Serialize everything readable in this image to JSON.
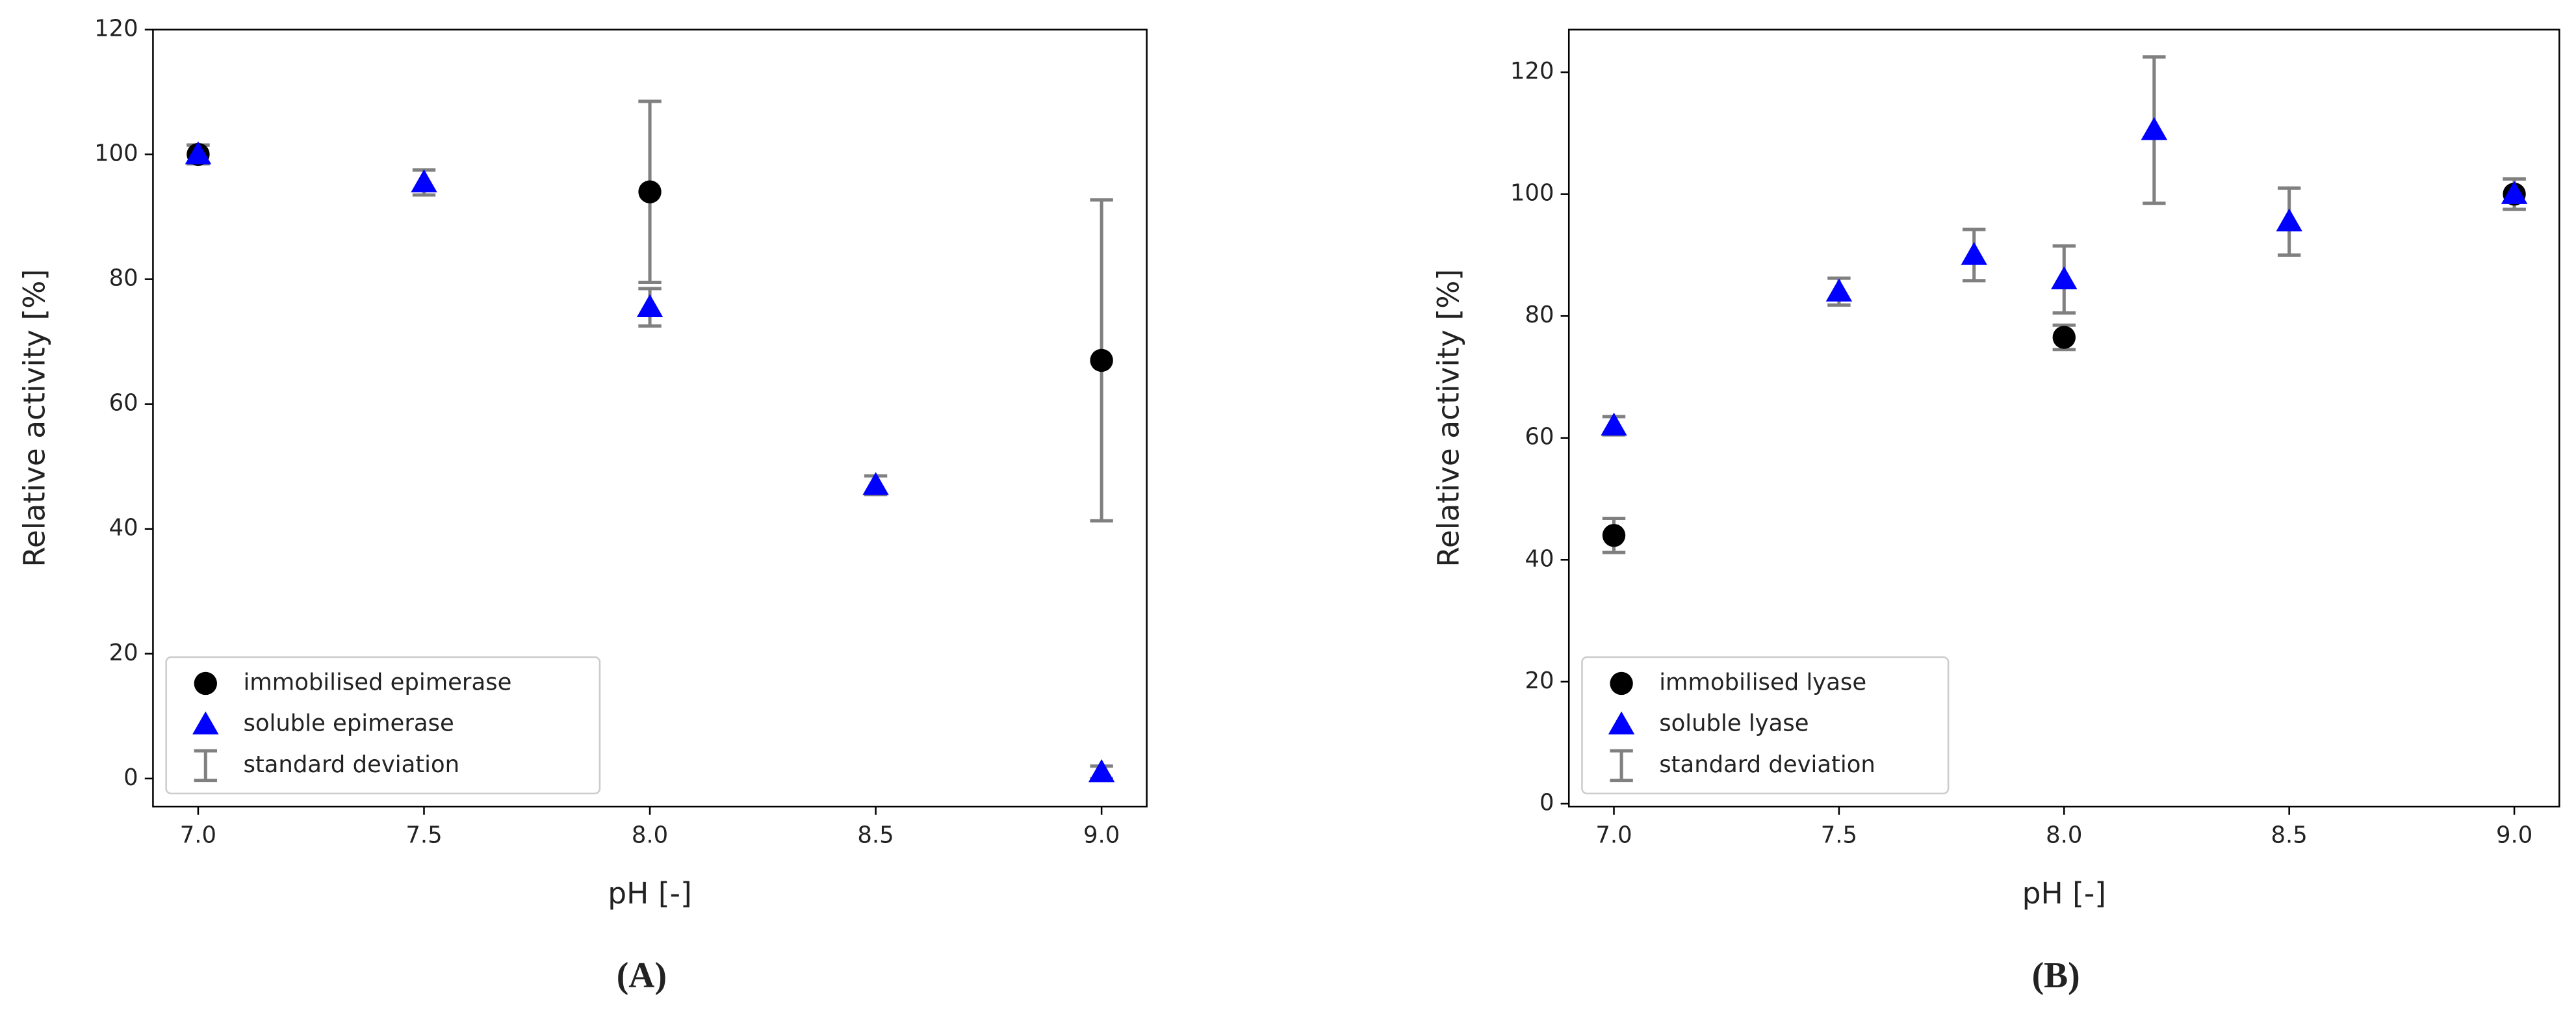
{
  "chart_data": [
    {
      "type": "scatter",
      "panel_label": "(A)",
      "xlabel": "pH [-]",
      "ylabel": "Relative activity [%]",
      "xlim": [
        6.9,
        9.1
      ],
      "ylim": [
        -4.5,
        120
      ],
      "xticks": [
        {
          "value": 7,
          "label": "7.0"
        },
        {
          "value": 7.5,
          "label": "7.5"
        },
        {
          "value": 8,
          "label": "8.0"
        },
        {
          "value": 8.5,
          "label": "8.5"
        },
        {
          "value": 9,
          "label": "9.0"
        }
      ],
      "yticks": [
        0,
        20,
        40,
        60,
        80,
        100,
        120
      ],
      "legend": "lower left",
      "errorbar_label": "standard deviation",
      "errorbar_color": "#808080",
      "series": [
        {
          "name": "immobilised epimerase",
          "color": "#000000",
          "marker": "circle",
          "x": [
            7,
            8,
            9
          ],
          "values": [
            100,
            94,
            67
          ],
          "errors": [
            1.5,
            14.5,
            25.7
          ]
        },
        {
          "name": "soluble epimerase",
          "color": "#0000ff",
          "marker": "triangle",
          "x": [
            7,
            7.5,
            8,
            8.5,
            9
          ],
          "values": [
            100,
            95.5,
            75.5,
            47,
            1
          ],
          "errors": [
            1.5,
            2,
            3,
            1.5,
            1
          ]
        }
      ]
    },
    {
      "type": "scatter",
      "panel_label": "(B)",
      "xlabel": "pH [-]",
      "ylabel": "Relative activity [%]",
      "xlim": [
        6.9,
        9.1
      ],
      "ylim": [
        -0.5,
        127
      ],
      "xticks": [
        {
          "value": 7,
          "label": "7.0"
        },
        {
          "value": 7.5,
          "label": "7.5"
        },
        {
          "value": 8,
          "label": "8.0"
        },
        {
          "value": 8.5,
          "label": "8.5"
        },
        {
          "value": 9,
          "label": "9.0"
        }
      ],
      "yticks": [
        0,
        20,
        40,
        60,
        80,
        100,
        120
      ],
      "legend": "lower left",
      "errorbar_label": "standard deviation",
      "errorbar_color": "#808080",
      "series": [
        {
          "name": "immobilised lyase",
          "color": "#000000",
          "marker": "circle",
          "x": [
            7,
            8,
            9
          ],
          "values": [
            44,
            76.5,
            100
          ],
          "errors": [
            2.8,
            2,
            2.5
          ]
        },
        {
          "name": "soluble lyase",
          "color": "#0000ff",
          "marker": "triangle",
          "x": [
            7,
            7.5,
            7.8,
            8,
            8.2,
            8.5,
            9
          ],
          "values": [
            62,
            84,
            90,
            86,
            110.5,
            95.5,
            100
          ],
          "errors": [
            1.5,
            2.2,
            4.2,
            5.5,
            12,
            5.5,
            2.5
          ]
        }
      ]
    }
  ]
}
